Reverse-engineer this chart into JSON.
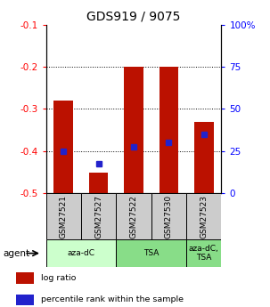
{
  "title": "GDS919 / 9075",
  "samples": [
    "GSM27521",
    "GSM27527",
    "GSM27522",
    "GSM27530",
    "GSM27523"
  ],
  "bar_tops": [
    -0.28,
    -0.45,
    -0.2,
    -0.2,
    -0.33
  ],
  "bar_bottoms": [
    -0.5,
    -0.5,
    -0.5,
    -0.5,
    -0.5
  ],
  "percentile_values": [
    -0.4,
    -0.43,
    -0.39,
    -0.38,
    -0.36
  ],
  "ylim_left": [
    -0.5,
    -0.1
  ],
  "ylim_right": [
    0,
    100
  ],
  "yticks_left": [
    -0.5,
    -0.4,
    -0.3,
    -0.2,
    -0.1
  ],
  "yticks_right": [
    0,
    25,
    50,
    75,
    100
  ],
  "ytick_labels_right": [
    "0",
    "25",
    "50",
    "75",
    "100%"
  ],
  "bar_color": "#bb1100",
  "blue_color": "#2222cc",
  "sample_bg": "#cccccc",
  "agent_groups": [
    {
      "label": "aza-dC",
      "color": "#ccffcc",
      "start": 0,
      "end": 2
    },
    {
      "label": "TSA",
      "color": "#88dd88",
      "start": 2,
      "end": 4
    },
    {
      "label": "aza-dC,\nTSA",
      "color": "#88dd88",
      "start": 4,
      "end": 5
    }
  ],
  "agent_label": "agent",
  "legend_items": [
    {
      "color": "#bb1100",
      "label": "log ratio"
    },
    {
      "color": "#2222cc",
      "label": "percentile rank within the sample"
    }
  ],
  "grid_lines": [
    -0.2,
    -0.3,
    -0.4
  ],
  "bar_width": 0.55
}
